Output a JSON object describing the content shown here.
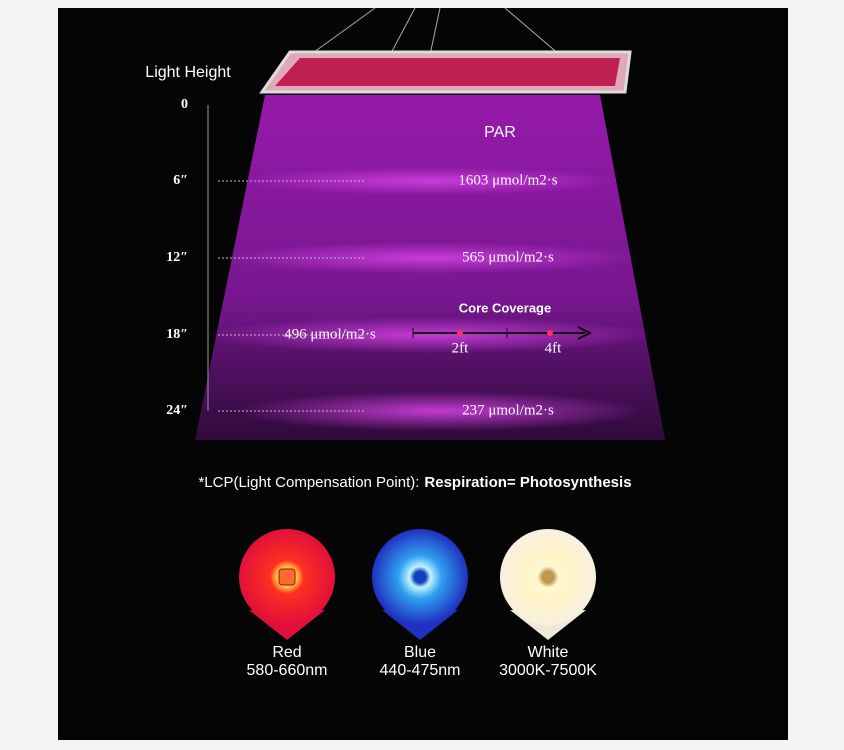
{
  "height_scale": {
    "title": "Light Height",
    "par_title": "PAR",
    "levels": [
      {
        "label": "0"
      },
      {
        "label": "6″",
        "par": "1603 μmol/m2·s"
      },
      {
        "label": "12″",
        "par": "565 μmol/m2·s"
      },
      {
        "label": "18″",
        "par": "496 μmol/m2·s"
      },
      {
        "label": "24″",
        "par": "237 μmol/m2·s"
      }
    ]
  },
  "core_coverage": {
    "title": "Core Coverage",
    "marks": [
      "2ft",
      "4ft"
    ]
  },
  "note": {
    "prefix": "*LCP(Light Compensation Point):",
    "emphasis": "Respiration= Photosynthesis"
  },
  "leds": [
    {
      "name": "Red",
      "range": "580-660nm"
    },
    {
      "name": "Blue",
      "range": "440-475nm"
    },
    {
      "name": "White",
      "range": "3000K-7500K"
    }
  ]
}
